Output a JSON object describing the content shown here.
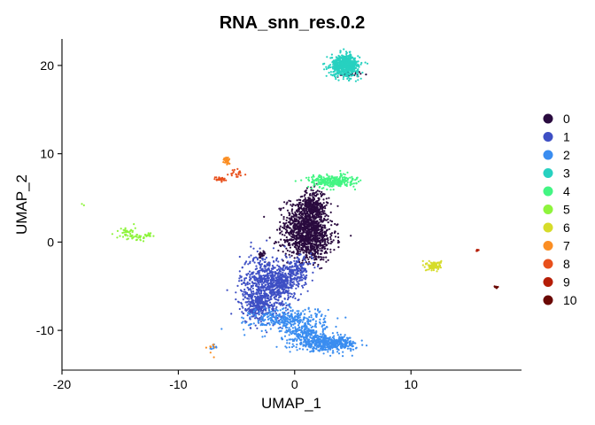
{
  "chart_data": {
    "type": "scatter",
    "title": "RNA_snn_res.0.2",
    "xlabel": "UMAP_1",
    "ylabel": "UMAP_2",
    "xlim": [
      -20,
      19.5
    ],
    "ylim": [
      -14.5,
      23
    ],
    "x_ticks": [
      -20,
      -10,
      0,
      10
    ],
    "y_ticks": [
      -10,
      0,
      10,
      20
    ],
    "grid": false,
    "legend_position": "right",
    "series": [
      {
        "name": "0",
        "color": "#2a0b3f",
        "clusters": [
          {
            "cx": 1.0,
            "cy": 2.2,
            "sx": 0.9,
            "sy": 1.4,
            "n": 700
          },
          {
            "cx": 1.3,
            "cy": 0.2,
            "sx": 1.1,
            "sy": 1.2,
            "n": 600
          },
          {
            "cx": 1.6,
            "cy": 4.2,
            "sx": 0.5,
            "sy": 0.9,
            "n": 220
          },
          {
            "cx": 4.7,
            "cy": 19.0,
            "sx": 0.5,
            "sy": 0.2,
            "n": 25
          },
          {
            "cx": -2.8,
            "cy": -1.5,
            "sx": 0.2,
            "sy": 0.2,
            "n": 20
          }
        ]
      },
      {
        "name": "1",
        "color": "#3e4fc4",
        "clusters": [
          {
            "cx": -2.5,
            "cy": -5.0,
            "sx": 1.1,
            "sy": 1.8,
            "n": 700
          },
          {
            "cx": -0.9,
            "cy": -4.5,
            "sx": 0.8,
            "sy": 0.8,
            "n": 280
          },
          {
            "cx": -3.2,
            "cy": -7.3,
            "sx": 0.6,
            "sy": 0.7,
            "n": 180
          },
          {
            "cx": 0.3,
            "cy": -3.0,
            "sx": 0.6,
            "sy": 0.6,
            "n": 120
          }
        ]
      },
      {
        "name": "2",
        "color": "#3a8df0",
        "clusters": [
          {
            "cx": 2.8,
            "cy": -11.5,
            "sx": 1.3,
            "sy": 0.4,
            "n": 500
          },
          {
            "cx": -0.5,
            "cy": -8.8,
            "sx": 1.6,
            "sy": 0.7,
            "n": 350
          },
          {
            "cx": 1.0,
            "cy": -10.4,
            "sx": 0.8,
            "sy": 0.4,
            "n": 150
          },
          {
            "cx": -7.0,
            "cy": -11.9,
            "sx": 0.2,
            "sy": 0.2,
            "n": 10
          }
        ]
      },
      {
        "name": "3",
        "color": "#27d1c0",
        "clusters": [
          {
            "cx": 4.3,
            "cy": 20.0,
            "sx": 0.6,
            "sy": 0.6,
            "n": 600
          }
        ]
      },
      {
        "name": "4",
        "color": "#43f583",
        "clusters": [
          {
            "cx": 3.2,
            "cy": 6.9,
            "sx": 1.0,
            "sy": 0.35,
            "n": 280
          }
        ]
      },
      {
        "name": "5",
        "color": "#8ef43c",
        "clusters": [
          {
            "cx": -14.5,
            "cy": 1.0,
            "sx": 0.4,
            "sy": 0.4,
            "n": 40
          },
          {
            "cx": -13.5,
            "cy": 0.5,
            "sx": 0.3,
            "sy": 0.3,
            "n": 25
          },
          {
            "cx": -12.5,
            "cy": 0.8,
            "sx": 0.2,
            "sy": 0.2,
            "n": 15
          },
          {
            "cx": -18.2,
            "cy": 4.2,
            "sx": 0.05,
            "sy": 0.05,
            "n": 2
          }
        ]
      },
      {
        "name": "6",
        "color": "#d6dc2a",
        "clusters": [
          {
            "cx": 12.0,
            "cy": -2.7,
            "sx": 0.3,
            "sy": 0.25,
            "n": 120
          }
        ]
      },
      {
        "name": "7",
        "color": "#fb8e23",
        "clusters": [
          {
            "cx": -5.8,
            "cy": 9.2,
            "sx": 0.15,
            "sy": 0.25,
            "n": 30
          },
          {
            "cx": -7.1,
            "cy": -12.1,
            "sx": 0.3,
            "sy": 0.4,
            "n": 8
          }
        ]
      },
      {
        "name": "8",
        "color": "#e8501c",
        "clusters": [
          {
            "cx": -6.4,
            "cy": 7.1,
            "sx": 0.25,
            "sy": 0.15,
            "n": 30
          },
          {
            "cx": -4.9,
            "cy": 7.7,
            "sx": 0.3,
            "sy": 0.25,
            "n": 20
          }
        ]
      },
      {
        "name": "9",
        "color": "#b51d06",
        "clusters": [
          {
            "cx": 15.7,
            "cy": -0.9,
            "sx": 0.08,
            "sy": 0.06,
            "n": 10
          }
        ]
      },
      {
        "name": "10",
        "color": "#6a0803",
        "clusters": [
          {
            "cx": 17.3,
            "cy": -5.1,
            "sx": 0.12,
            "sy": 0.1,
            "n": 10
          }
        ]
      }
    ]
  }
}
